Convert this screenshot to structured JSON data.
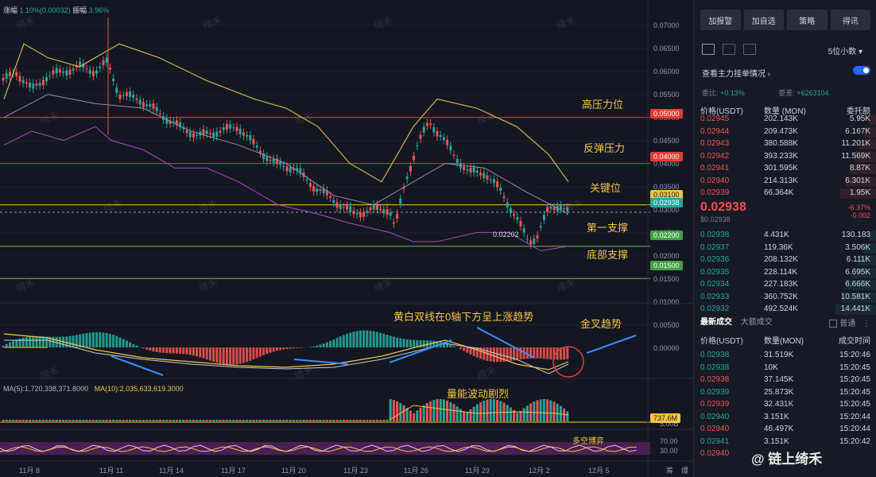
{
  "header": {
    "change_label": "涨幅",
    "change_value": "1.10%(0.00032)",
    "amp_label": "振幅",
    "amp_value": "3.96%"
  },
  "watermark": "绮禾",
  "price_axis": [
    "0.07000",
    "0.06500",
    "0.06000",
    "0.05500",
    "0.05000",
    "0.04500",
    "0.04000",
    "0.03500",
    "0.03000",
    "0.02500",
    "0.02000",
    "0.01500",
    "0.01000",
    "0.00500",
    "0.00000",
    "5.00B",
    "70.00",
    "30.00"
  ],
  "levels": [
    {
      "label": "高压力位",
      "value": "0.05000",
      "color": "#e53935"
    },
    {
      "label": "反弹压力",
      "value": "0.04000",
      "color": "#e53935"
    },
    {
      "label": "关键位",
      "value": "0.03100",
      "color": "#f5c542"
    },
    {
      "label": "第一支撑",
      "value": "0.02200",
      "color": "#43a047"
    },
    {
      "label": "底部支撑",
      "value": "0.01500",
      "color": "#43a047"
    }
  ],
  "current_price_tag": "0.02938",
  "low_marker": "0.02202",
  "annotations": {
    "macd": "黄白双线在0轴下方呈上涨趋势",
    "golden_cross": "金叉趋势",
    "volume": "量能波动剧烈",
    "longshort": "多空博弈"
  },
  "ma_line": {
    "ma5_label": "MA(5):1,720,338,371.8000",
    "ma10_label": "MA(10):2,035,633,619.3000"
  },
  "volume_tag": "737.6M",
  "x_axis": [
    "11月 8",
    "11月 11",
    "11月 14",
    "11月 17",
    "11月 20",
    "11月 23",
    "11月 26",
    "11月 29",
    "12月 2",
    "12月 5"
  ],
  "x_axis_suffix": "筹",
  "x_axis_suffix2": "爆",
  "sidebar": {
    "buttons": [
      "加报警",
      "加自选",
      "策略",
      "得讯"
    ],
    "decimals": "5位小数",
    "depth_title": "查看主力挂单情况",
    "ratio_label": "委比:",
    "ratio_value": "+0.13%",
    "diff_label": "委差:",
    "diff_value": "+6263104",
    "ob_headers": [
      "价格(USDT)",
      "数量 (MON)",
      "委托额"
    ],
    "asks": [
      [
        "0.02945",
        "202.143K",
        "5.95K"
      ],
      [
        "0.02944",
        "209.473K",
        "6.167K"
      ],
      [
        "0.02943",
        "380.588K",
        "11.201K"
      ],
      [
        "0.02942",
        "393.233K",
        "11.569K"
      ],
      [
        "0.02941",
        "301.595K",
        "8.87K"
      ],
      [
        "0.02940",
        "214.313K",
        "6.301K"
      ],
      [
        "0.02939",
        "66.364K",
        "1.95K"
      ]
    ],
    "mid_price": "0.02938",
    "mid_sub": "$0.02938",
    "mid_change": "-6.37%",
    "mid_change2": "-0.002",
    "bids": [
      [
        "0.02938",
        "4.431K",
        "130.183"
      ],
      [
        "0.02937",
        "119.36K",
        "3.506K"
      ],
      [
        "0.02936",
        "208.132K",
        "6.111K"
      ],
      [
        "0.02935",
        "228.114K",
        "6.695K"
      ],
      [
        "0.02934",
        "227.183K",
        "6.666K"
      ],
      [
        "0.02933",
        "360.752K",
        "10.581K"
      ],
      [
        "0.02932",
        "492.524K",
        "14.441K"
      ]
    ],
    "trades_tab": "最新成交",
    "bigtrades_tab": "大额成交",
    "normal_label": "普通",
    "trade_headers": [
      "价格(USDT)",
      "数量(MON)",
      "成交时间"
    ],
    "trades": [
      [
        "0.02938",
        "31.519K",
        "15:20:46",
        "g"
      ],
      [
        "0.02938",
        "10K",
        "15:20:45",
        "g"
      ],
      [
        "0.02938",
        "37.145K",
        "15:20:45",
        "r"
      ],
      [
        "0.02939",
        "25.873K",
        "15:20:45",
        "g"
      ],
      [
        "0.02939",
        "32.431K",
        "15:20:45",
        "r"
      ],
      [
        "0.02940",
        "3.151K",
        "15:20:44",
        "g"
      ],
      [
        "0.02940",
        "46.497K",
        "15:20:44",
        "r"
      ],
      [
        "0.02941",
        "3.151K",
        "15:20:42",
        "g"
      ],
      [
        "0.02940",
        "",
        "",
        "r"
      ]
    ]
  },
  "brand": "@ 链上绮禾"
}
